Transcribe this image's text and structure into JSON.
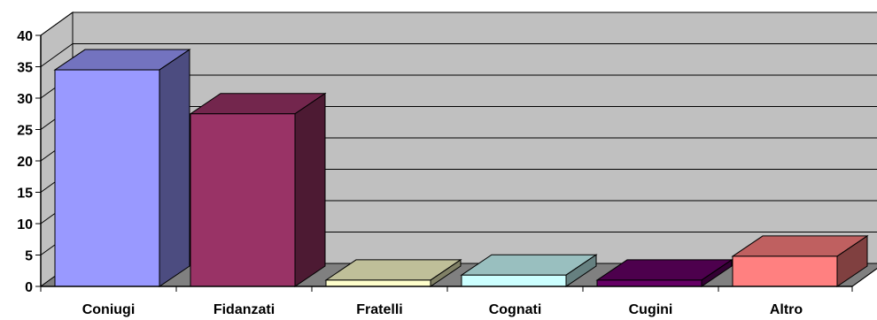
{
  "chart_data": {
    "type": "bar",
    "title": "",
    "xlabel": "",
    "ylabel": "",
    "ylim": [
      0,
      40
    ],
    "yticks": [
      0,
      5,
      10,
      15,
      20,
      25,
      30,
      35,
      40
    ],
    "grid": true,
    "categories": [
      "Coniugi",
      "Fidanzati",
      "Fratelli",
      "Cognati",
      "Cugini",
      "Altro"
    ],
    "values": [
      34.5,
      27.5,
      1.0,
      1.8,
      1.0,
      4.8
    ],
    "bar_colors": [
      {
        "front": "#9999ff",
        "side": "#4c4c80",
        "top": "#7373bf"
      },
      {
        "front": "#993366",
        "side": "#4d1a33",
        "top": "#73264d"
      },
      {
        "front": "#ffffcc",
        "side": "#808066",
        "top": "#bfbf99"
      },
      {
        "front": "#ccffff",
        "side": "#668080",
        "top": "#99bfbf"
      },
      {
        "front": "#660066",
        "side": "#330033",
        "top": "#4d004d"
      },
      {
        "front": "#ff8080",
        "side": "#804040",
        "top": "#bf6060"
      }
    ],
    "wall_color": "#c0c0c0",
    "floor_color": "#808080"
  }
}
